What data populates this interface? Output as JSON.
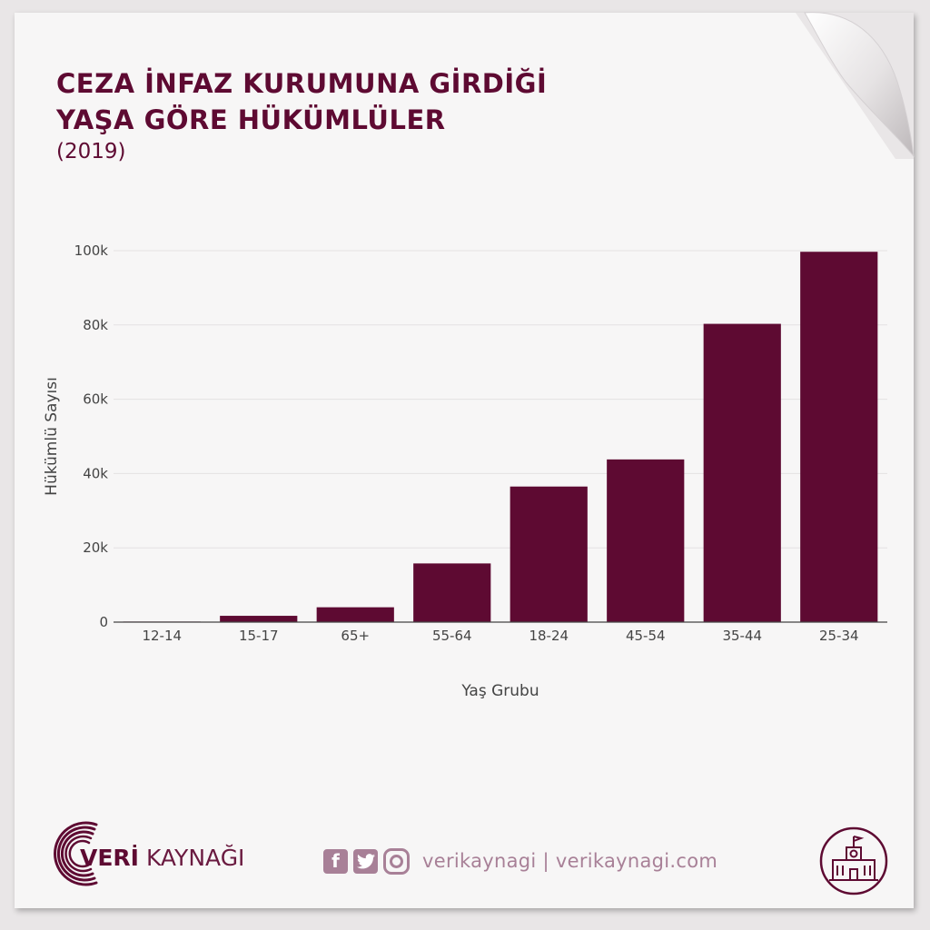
{
  "header": {
    "title_line1": "CEZA İNFAZ KURUMUNA GİRDİĞİ",
    "title_line2": "YAŞA GÖRE HÜKÜMLÜLER",
    "subtitle": "(2019)"
  },
  "chart_data": {
    "type": "bar",
    "categories": [
      "12-14",
      "15-17",
      "65+",
      "55-64",
      "18-24",
      "45-54",
      "35-44",
      "25-34"
    ],
    "values": [
      150,
      1700,
      4000,
      15800,
      36500,
      43800,
      80300,
      99700
    ],
    "xlabel": "Yaş Grubu",
    "ylabel": "Hükümlü Sayısı",
    "ylim": [
      0,
      100000
    ],
    "yticks": [
      0,
      20000,
      40000,
      60000,
      80000,
      100000
    ],
    "ytick_labels": [
      "0",
      "20k",
      "40k",
      "60k",
      "80k",
      "100k"
    ],
    "grid": true,
    "bar_color": "#5e0a32"
  },
  "footer": {
    "brand_bold": "VERİ",
    "brand_light": "KAYNAĞI",
    "social_icons": [
      "facebook-icon",
      "twitter-icon",
      "instagram-icon"
    ],
    "handle_text": "verikaynagi | verikaynagi.com",
    "badge_icon": "school-building-icon"
  },
  "colors": {
    "accent": "#5e0a32",
    "muted": "#a88097",
    "paper": "#f7f6f6",
    "background": "#e9e6e7"
  }
}
